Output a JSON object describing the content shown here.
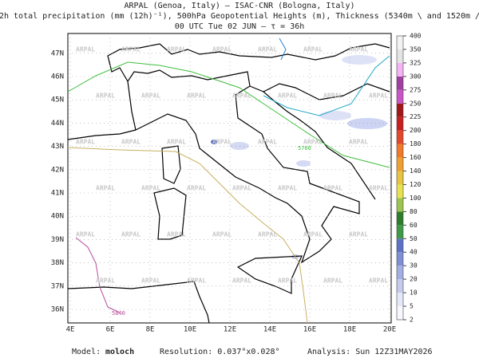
{
  "header": {
    "line1": "ARPAL (Genoa, Italy)  –  ISAC-CNR (Bologna, Italy)",
    "line2": "12h total precipitation (mm (12h)⁻¹), 500hPa Geopotential Heights (m), Thickness (5340m \\ and 1520m /)",
    "line3": "00 UTC Tue 02 JUN  –  τ = 36h"
  },
  "map": {
    "lat_labels": [
      "36N",
      "37N",
      "38N",
      "39N",
      "40N",
      "41N",
      "42N",
      "43N",
      "44N",
      "45N",
      "46N",
      "47N"
    ],
    "lon_labels": [
      "4E",
      "6E",
      "8E",
      "10E",
      "12E",
      "14E",
      "16E",
      "18E",
      "20E"
    ],
    "contour_labels": [
      "5760",
      "5840"
    ],
    "watermark": "ARPAL"
  },
  "colorbar": {
    "labels": [
      2,
      5,
      10,
      20,
      30,
      40,
      50,
      60,
      80,
      100,
      120,
      140,
      160,
      180,
      200,
      225,
      250,
      275,
      300,
      325,
      350,
      400
    ],
    "colors": [
      "#f7f7ff",
      "#e4e8f8",
      "#c4cbee",
      "#a3aee4",
      "#7f8fd6",
      "#5d72c6",
      "#3f9a48",
      "#2c7d2c",
      "#9cc450",
      "#e6e250",
      "#e8c440",
      "#f0a032",
      "#f07a2a",
      "#e4482a",
      "#c82020",
      "#a01818",
      "#c856c8",
      "#a040a0",
      "#f4b4f4",
      "#e4e4e4",
      "#f2f2f2"
    ]
  },
  "footer": {
    "model_label": "Model:",
    "model": "moloch",
    "resolution": "Resolution: 0.037°x0.028°",
    "analysis": "Analysis: Sun 12Z31MAY2026"
  }
}
